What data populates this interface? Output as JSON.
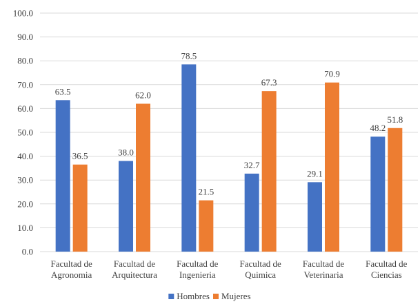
{
  "chart_data": {
    "type": "bar",
    "title": "",
    "xlabel": "",
    "ylabel": "",
    "ylim": [
      0,
      100
    ],
    "y_ticks": [
      "0.0",
      "10.0",
      "20.0",
      "30.0",
      "40.0",
      "50.0",
      "60.0",
      "70.0",
      "80.0",
      "90.0",
      "100.0"
    ],
    "grid": true,
    "legend_position": "bottom",
    "categories": [
      [
        "Facultad de",
        "Agronomia"
      ],
      [
        "Facultad de",
        "Arquitectura"
      ],
      [
        "Facultad de",
        "Ingenieria"
      ],
      [
        "Facultad de",
        "Quimica"
      ],
      [
        "Facultad de",
        "Veterinaria"
      ],
      [
        "Facultad de",
        "Ciencias"
      ]
    ],
    "series": [
      {
        "name": "Hombres",
        "color": "#4472c4",
        "values": [
          63.5,
          38.0,
          78.5,
          32.7,
          29.1,
          48.2
        ],
        "labels": [
          "63.5",
          "38.0",
          "78.5",
          "32.7",
          "29.1",
          "48.2"
        ]
      },
      {
        "name": "Mujeres",
        "color": "#ed7d31",
        "values": [
          36.5,
          62.0,
          21.5,
          67.3,
          70.9,
          51.8
        ],
        "labels": [
          "36.5",
          "62.0",
          "21.5",
          "67.3",
          "70.9",
          "51.8"
        ]
      }
    ]
  }
}
